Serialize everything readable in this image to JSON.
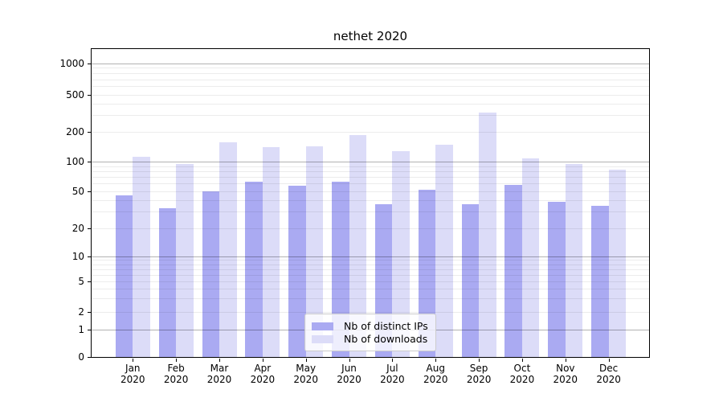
{
  "chart_data": {
    "type": "bar",
    "title": "nethet 2020",
    "months": [
      "Jan",
      "Feb",
      "Mar",
      "Apr",
      "May",
      "Jun",
      "Jul",
      "Aug",
      "Sep",
      "Oct",
      "Nov",
      "Dec"
    ],
    "year": "2020",
    "series": [
      {
        "name": "Nb of distinct IPs",
        "color": "#aaaaf2",
        "values": [
          45,
          33,
          50,
          62,
          57,
          62,
          36,
          51,
          36,
          58,
          38,
          35
        ]
      },
      {
        "name": "Nb of downloads",
        "color": "#dcdcf8",
        "values": [
          112,
          94,
          155,
          140,
          143,
          185,
          128,
          148,
          320,
          108,
          95,
          82
        ]
      }
    ],
    "yticks": [
      0,
      1,
      2,
      5,
      10,
      20,
      50,
      100,
      200,
      500,
      1000
    ],
    "yscale": "log",
    "ylim": [
      0,
      1000
    ],
    "grid": true,
    "legend_position": "inside-bottom-center",
    "colors": {
      "major_grid": "#b3b3b3",
      "minor_grid": "#e8e8e8",
      "spine": "#000000",
      "background": "#ffffff"
    }
  }
}
